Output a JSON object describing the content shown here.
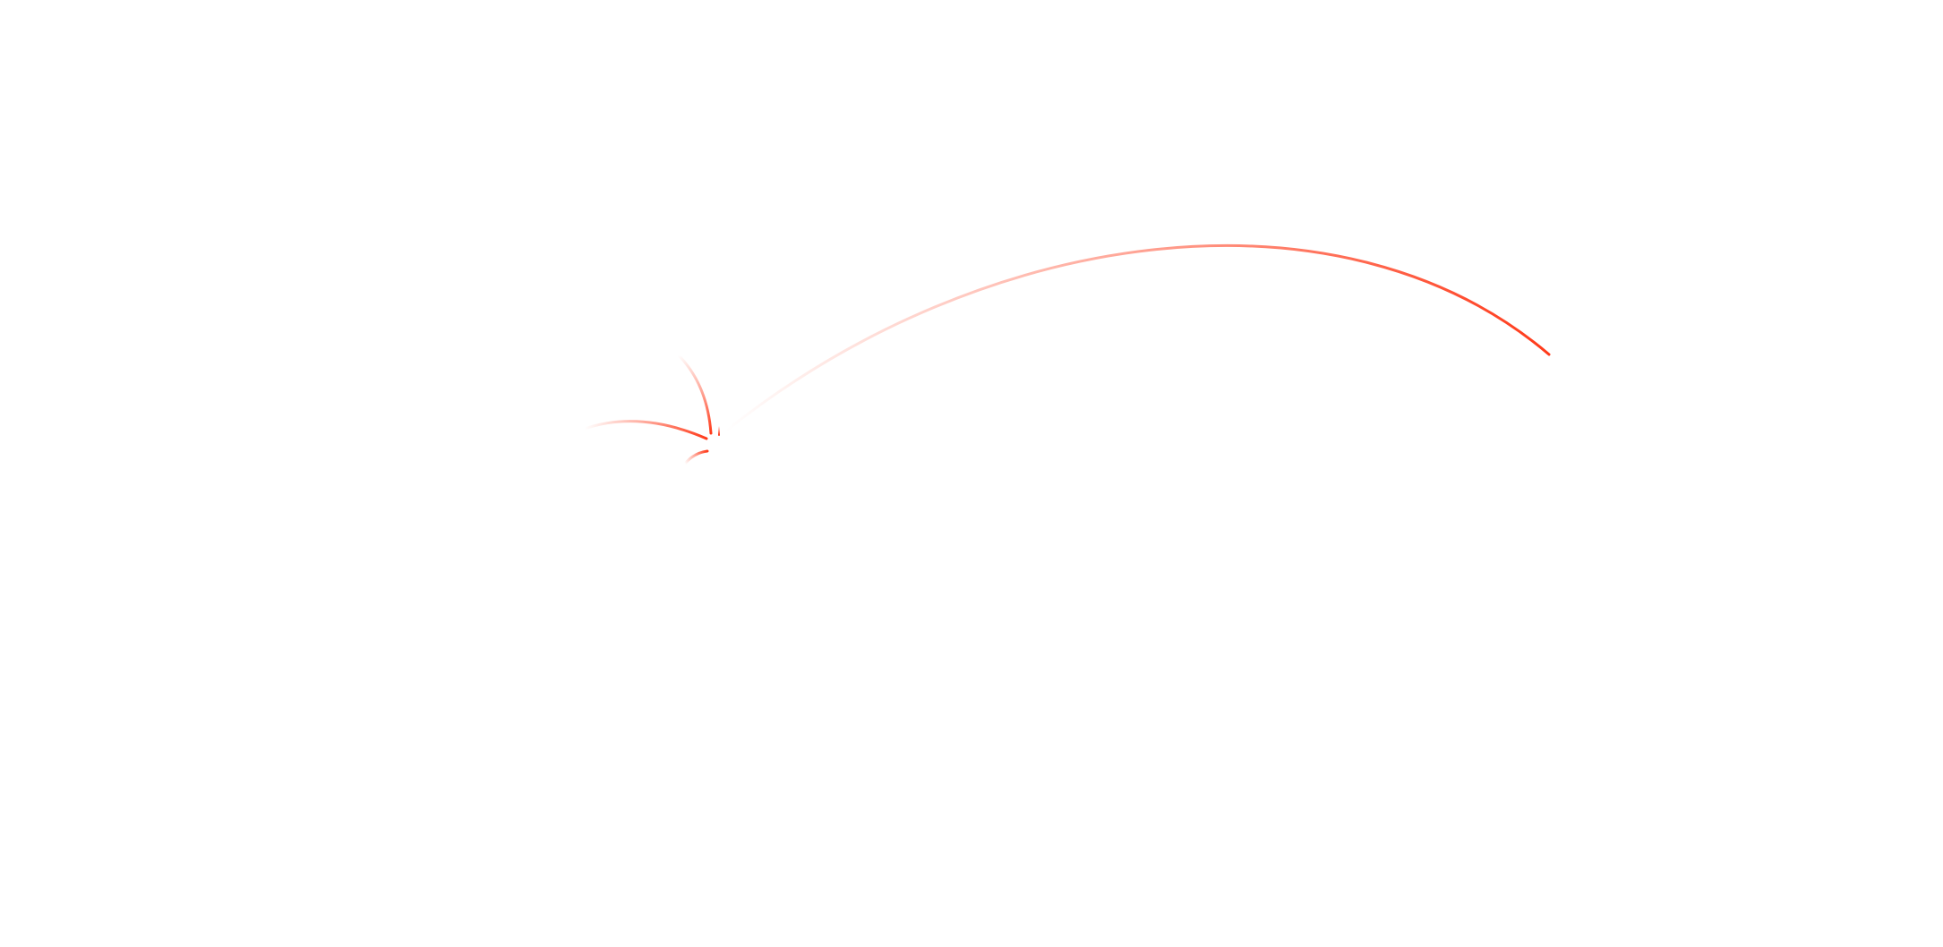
{
  "map": {
    "line_color": "#ff3a1a"
  }
}
